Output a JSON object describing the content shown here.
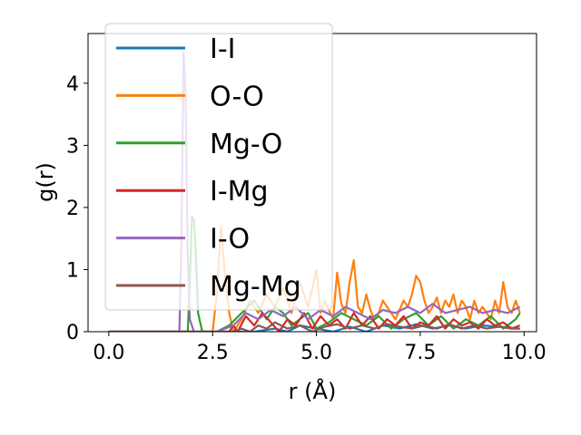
{
  "chart_data": {
    "type": "line",
    "title": "",
    "xlabel": "r (Å)",
    "ylabel": "g(r)",
    "xlim": [
      -0.5,
      10.3
    ],
    "ylim": [
      0,
      4.8
    ],
    "xticks": [
      0.0,
      2.5,
      5.0,
      7.5,
      10.0
    ],
    "xtick_labels": [
      "0.0",
      "2.5",
      "5.0",
      "7.5",
      "10.0"
    ],
    "yticks": [
      0,
      1,
      2,
      3,
      4
    ],
    "ytick_labels": [
      "0",
      "1",
      "2",
      "3",
      "4"
    ],
    "grid": false,
    "legend_position": "upper-left",
    "series": [
      {
        "name": "I-I",
        "color": "#1f77b4",
        "x": [
          0,
          1,
          2,
          3,
          3.5,
          4.0,
          4.3,
          4.6,
          5.0,
          5.4,
          5.8,
          6.2,
          6.6,
          7.0,
          7.4,
          7.8,
          8.2,
          8.6,
          9.0,
          9.4,
          9.9
        ],
        "y": [
          0,
          0,
          0,
          0,
          0,
          0.05,
          0,
          0.1,
          0.05,
          0,
          0.08,
          0,
          0.1,
          0.05,
          0.12,
          0.05,
          0.1,
          0.05,
          0.1,
          0.08,
          0.05
        ]
      },
      {
        "name": "O-O",
        "color": "#ff7f0e",
        "x": [
          0,
          2.5,
          2.6,
          2.7,
          2.8,
          2.9,
          3.0,
          3.2,
          3.4,
          3.6,
          3.8,
          4.0,
          4.2,
          4.4,
          4.6,
          4.8,
          5.0,
          5.1,
          5.2,
          5.4,
          5.5,
          5.6,
          5.7,
          5.8,
          5.9,
          6.0,
          6.1,
          6.2,
          6.3,
          6.4,
          6.5,
          6.6,
          6.7,
          6.8,
          6.9,
          7.0,
          7.1,
          7.2,
          7.3,
          7.4,
          7.5,
          7.6,
          7.7,
          7.8,
          7.9,
          8.0,
          8.1,
          8.2,
          8.3,
          8.4,
          8.5,
          8.6,
          8.7,
          8.8,
          8.9,
          9.0,
          9.1,
          9.2,
          9.3,
          9.4,
          9.5,
          9.6,
          9.7,
          9.8,
          9.9
        ],
        "y": [
          0,
          0,
          0.6,
          1.7,
          0.9,
          0.3,
          0.0,
          0.2,
          0.5,
          0.3,
          0.6,
          0.4,
          0.7,
          0.3,
          0.8,
          0.4,
          1.0,
          0.3,
          0.5,
          0.2,
          0.95,
          0.45,
          0.3,
          0.8,
          1.15,
          0.4,
          0.3,
          0.6,
          0.35,
          0.2,
          0.3,
          0.5,
          0.4,
          0.3,
          0.2,
          0.35,
          0.5,
          0.4,
          0.6,
          0.9,
          0.8,
          0.5,
          0.3,
          0.4,
          0.55,
          0.3,
          0.5,
          0.4,
          0.6,
          0.3,
          0.5,
          0.4,
          0.2,
          0.5,
          0.3,
          0.4,
          0.3,
          0.2,
          0.5,
          0.3,
          0.8,
          0.4,
          0.3,
          0.5,
          0.3
        ]
      },
      {
        "name": "Mg-O",
        "color": "#2ca02c",
        "x": [
          0,
          1.9,
          1.95,
          2.0,
          2.05,
          2.1,
          2.15,
          2.25,
          2.4,
          2.6,
          2.9,
          3.2,
          3.5,
          3.8,
          4.0,
          4.2,
          4.4,
          4.6,
          4.8,
          5.0,
          5.3,
          5.6,
          5.9,
          6.2,
          6.5,
          6.8,
          7.1,
          7.4,
          7.7,
          8.0,
          8.3,
          8.6,
          8.9,
          9.2,
          9.5,
          9.8,
          9.9
        ],
        "y": [
          0,
          0,
          0.8,
          1.85,
          1.8,
          1.2,
          0.3,
          0,
          0,
          0,
          0.1,
          0.3,
          0.5,
          0.2,
          0.4,
          0.3,
          0.1,
          0.2,
          0.3,
          0.05,
          0.15,
          0.3,
          0.2,
          0.1,
          0.25,
          0.05,
          0.2,
          0.3,
          0.1,
          0.25,
          0.05,
          0.2,
          0.1,
          0.25,
          0.05,
          0.2,
          0.3
        ]
      },
      {
        "name": "I-Mg",
        "color": "#d62728",
        "x": [
          0,
          2.9,
          3.0,
          3.1,
          3.3,
          3.5,
          3.7,
          3.9,
          4.1,
          4.3,
          4.5,
          4.7,
          4.9,
          5.1,
          5.3,
          5.5,
          5.7,
          5.9,
          6.1,
          6.3,
          6.5,
          6.7,
          6.9,
          7.1,
          7.3,
          7.5,
          7.7,
          7.9,
          8.1,
          8.3,
          8.5,
          8.7,
          8.9,
          9.1,
          9.3,
          9.5,
          9.7,
          9.9
        ],
        "y": [
          0,
          0,
          0.1,
          0,
          0.25,
          0.1,
          0.3,
          0.15,
          0,
          0.2,
          0.1,
          0.3,
          0.05,
          0.25,
          0.1,
          0.2,
          0.05,
          0.3,
          0.1,
          0.25,
          0.05,
          0.2,
          0.1,
          0.25,
          0.05,
          0.15,
          0.1,
          0.25,
          0.05,
          0.2,
          0.1,
          0.15,
          0.05,
          0.2,
          0.1,
          0.15,
          0.05,
          0.1
        ]
      },
      {
        "name": "I-O",
        "color": "#9467bd",
        "x": [
          0,
          1.7,
          1.75,
          1.8,
          1.85,
          1.9,
          1.95,
          2.05,
          2.2,
          2.6,
          3.0,
          3.3,
          3.6,
          3.9,
          4.2,
          4.5,
          4.8,
          5.1,
          5.4,
          5.7,
          6.0,
          6.3,
          6.6,
          6.9,
          7.2,
          7.5,
          7.8,
          8.1,
          8.4,
          8.7,
          9.0,
          9.3,
          9.6,
          9.9
        ],
        "y": [
          0,
          0,
          1.5,
          4.5,
          3.8,
          1.2,
          0.2,
          0,
          0,
          0,
          0.1,
          0.3,
          0.2,
          0.35,
          0.25,
          0.4,
          0.2,
          0.35,
          0.25,
          0.4,
          0.3,
          0.2,
          0.35,
          0.3,
          0.4,
          0.3,
          0.45,
          0.3,
          0.35,
          0.4,
          0.3,
          0.35,
          0.3,
          0.4
        ]
      },
      {
        "name": "Mg-Mg",
        "color": "#8c564b",
        "x": [
          0,
          3.0,
          3.2,
          3.4,
          3.6,
          3.8,
          4.0,
          4.3,
          4.6,
          4.9,
          5.2,
          5.5,
          5.8,
          6.1,
          6.4,
          6.7,
          7.0,
          7.3,
          7.6,
          7.9,
          8.2,
          8.5,
          8.8,
          9.1,
          9.4,
          9.7,
          9.9
        ],
        "y": [
          0,
          0,
          0.05,
          0,
          0.1,
          0.05,
          0.15,
          0.05,
          0.1,
          0,
          0.08,
          0.12,
          0.05,
          0.1,
          0.05,
          0.12,
          0.08,
          0.05,
          0.1,
          0.05,
          0.12,
          0.05,
          0.1,
          0.05,
          0.08,
          0.05,
          0.05
        ]
      }
    ]
  }
}
